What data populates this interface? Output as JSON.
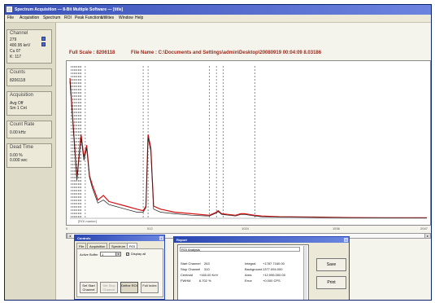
{
  "window": {
    "title": "Spectrum Acquisition — 8-Bit Multiple Software — [title]"
  },
  "menu": [
    "File",
    "Acquisition",
    "Spectrum",
    "ROI",
    "Peak Functions",
    "Utilities",
    "Window",
    "Help"
  ],
  "sidebar": {
    "channel": {
      "label": "Channel",
      "value": "279",
      "rows": [
        "400.95 keV",
        "Cu 07",
        "K: 117"
      ]
    },
    "counts": {
      "label": "Counts",
      "value": "8206118"
    },
    "acquisition": {
      "label": "Acquisition",
      "rows": [
        "Avg Off",
        "Sm 1 Cnt"
      ]
    },
    "count_rate": {
      "label": "Count Rate",
      "value": "0.00 kHz"
    },
    "dead_time": {
      "label": "Dead Time",
      "rows": [
        "0.00 %",
        "0.000 sec"
      ]
    }
  },
  "plot": {
    "full_scale_label": "Full Scale : 8206118",
    "file_name_label": "File Name : C:\\Documents and Settings\\admin\\Desktop\\20080919 00:04:09 8.03186",
    "x_tick_labels": [
      "0",
      "512",
      "1024",
      "1536",
      "2047"
    ],
    "marker_label": "[ROI marker]"
  },
  "chart_data": {
    "type": "line",
    "series": [
      {
        "color": "#d21010",
        "x": [
          0,
          40,
          64,
          80,
          96,
          112,
          128,
          160,
          192,
          224,
          256,
          320,
          384,
          420,
          436,
          448,
          464,
          480,
          520,
          600,
          700,
          800,
          840,
          850,
          870,
          950,
          980,
          1000,
          1060,
          1100,
          1200,
          1400,
          1600,
          1800,
          2047
        ],
        "y": [
          0.92,
          0.26,
          0.55,
          0.4,
          0.48,
          0.28,
          0.22,
          0.12,
          0.15,
          0.11,
          0.1,
          0.08,
          0.06,
          0.05,
          0.08,
          0.55,
          0.46,
          0.08,
          0.06,
          0.04,
          0.03,
          0.02,
          0.04,
          0.05,
          0.03,
          0.02,
          0.03,
          0.03,
          0.02,
          0.015,
          0.01,
          0.008,
          0.005,
          0.004,
          0.003
        ]
      },
      {
        "color": "#202020",
        "x": [
          0,
          40,
          64,
          80,
          96,
          112,
          128,
          160,
          192,
          224,
          256,
          320,
          384,
          420,
          436,
          448,
          464,
          480,
          520,
          600,
          700,
          800,
          840,
          850,
          870,
          950,
          980,
          1000,
          1060,
          1100,
          1200,
          1400,
          1600,
          1800,
          2047
        ],
        "y": [
          0.9,
          0.25,
          0.53,
          0.38,
          0.46,
          0.27,
          0.2,
          0.1,
          0.12,
          0.09,
          0.08,
          0.06,
          0.04,
          0.04,
          0.07,
          0.53,
          0.44,
          0.06,
          0.04,
          0.03,
          0.02,
          0.015,
          0.035,
          0.045,
          0.025,
          0.015,
          0.025,
          0.025,
          0.015,
          0.01,
          0.008,
          0.006,
          0.004,
          0.003,
          0.002
        ]
      }
    ],
    "roi_markers": [
      8,
      16,
      24,
      32,
      40,
      48,
      56,
      64,
      88,
      420,
      448,
      800,
      840,
      880,
      1060
    ],
    "xlim": [
      0,
      2047
    ],
    "ylim": [
      0,
      1
    ],
    "xlabel": "",
    "ylabel": "",
    "grid": false
  },
  "controls_panel": {
    "title": "Controls",
    "tabs": [
      "File",
      "Acquisition",
      "Spectrum",
      "ROI"
    ],
    "active_tab": "ROI",
    "active_buffer_label": "Active Buffer",
    "buffer_value": "1",
    "display_all_label": "Display all",
    "buttons": [
      "Set Start Channel",
      "Set Stop Channel",
      "Define ROI",
      "Full Index"
    ]
  },
  "report_panel": {
    "title": "Report",
    "heading": "ROI Analysis",
    "rows_left": [
      [
        "Start Channel",
        "263"
      ],
      [
        "Stop Channel",
        "310"
      ],
      [
        "Centroid",
        "+160.00  KeV"
      ],
      [
        "FWHM",
        "6.702 %"
      ]
    ],
    "rows_right": [
      [
        "Integral",
        "+1787.7160.00"
      ],
      [
        "Background",
        "1377.094.000"
      ],
      [
        "Area",
        "+12.096.000.00"
      ],
      [
        "Error",
        "+0.000  CPS"
      ]
    ],
    "save_label": "Save",
    "print_label": "Print"
  }
}
